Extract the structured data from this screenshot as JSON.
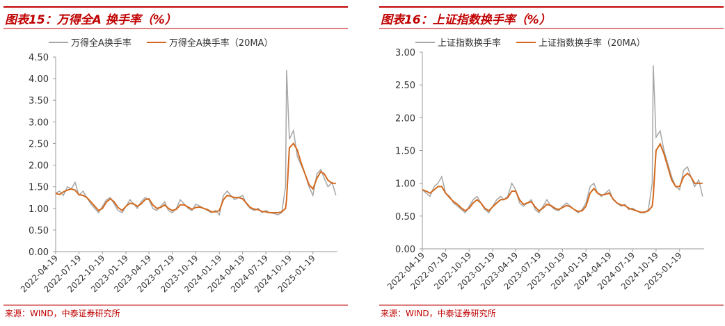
{
  "chart_data": [
    {
      "type": "line",
      "title": "图表15：万得全A 换手率（%）",
      "source": "来源：WIND，中泰证券研究所",
      "legend": "top",
      "grid": false,
      "x": [
        "2022-04-19",
        "2022-05-04",
        "2022-05-19",
        "2022-06-04",
        "2022-06-19",
        "2022-07-04",
        "2022-07-19",
        "2022-08-04",
        "2022-08-19",
        "2022-09-04",
        "2022-09-19",
        "2022-10-04",
        "2022-10-19",
        "2022-11-04",
        "2022-11-19",
        "2022-12-04",
        "2022-12-19",
        "2023-01-04",
        "2023-01-19",
        "2023-02-04",
        "2023-02-19",
        "2023-03-04",
        "2023-03-19",
        "2023-04-04",
        "2023-04-19",
        "2023-05-04",
        "2023-05-19",
        "2023-06-04",
        "2023-06-19",
        "2023-07-04",
        "2023-07-19",
        "2023-08-04",
        "2023-08-19",
        "2023-09-04",
        "2023-09-19",
        "2023-10-04",
        "2023-10-19",
        "2023-11-04",
        "2023-11-19",
        "2023-12-04",
        "2023-12-19",
        "2024-01-04",
        "2024-01-19",
        "2024-02-04",
        "2024-02-19",
        "2024-03-04",
        "2024-03-19",
        "2024-04-04",
        "2024-04-19",
        "2024-05-04",
        "2024-05-19",
        "2024-06-04",
        "2024-06-19",
        "2024-07-04",
        "2024-07-19",
        "2024-08-04",
        "2024-08-19",
        "2024-09-04",
        "2024-09-19",
        "2024-10-04",
        "2024-10-08",
        "2024-10-19",
        "2024-11-04",
        "2024-11-19",
        "2024-12-04",
        "2024-12-19",
        "2025-01-04",
        "2025-01-19",
        "2025-02-04",
        "2025-02-19",
        "2025-03-04",
        "2025-03-19",
        "2025-04-04",
        "2025-04-19"
      ],
      "xlim": [
        "2022-04-19",
        "2025-04-25"
      ],
      "xticks": [
        "2022-04-19",
        "2022-07-19",
        "2022-10-19",
        "2023-01-19",
        "2023-04-19",
        "2023-07-19",
        "2023-10-19",
        "2024-01-19",
        "2024-04-19",
        "2024-07-19",
        "2024-10-19",
        "2025-01-19"
      ],
      "ylim": [
        0,
        4.5
      ],
      "yticks": [
        {
          "value": 0,
          "label": "0.00"
        },
        {
          "value": 0.5,
          "label": "0.50"
        },
        {
          "value": 1,
          "label": "1.00"
        },
        {
          "value": 1.5,
          "label": "1.50"
        },
        {
          "value": 2,
          "label": "2.00"
        },
        {
          "value": 2.5,
          "label": "2.50"
        },
        {
          "value": 3,
          "label": "3.00"
        },
        {
          "value": 3.5,
          "label": "3.50"
        },
        {
          "value": 4,
          "label": "4.00"
        },
        {
          "value": 4.5,
          "label": "4.50"
        }
      ],
      "series": [
        {
          "name": "万得全A换手率",
          "color": "#a6a6a6",
          "values": [
            1.35,
            1.4,
            1.3,
            1.5,
            1.45,
            1.6,
            1.3,
            1.4,
            1.25,
            1.1,
            1.0,
            0.9,
            1.05,
            1.2,
            1.25,
            1.1,
            0.95,
            0.9,
            1.05,
            1.2,
            1.1,
            1.0,
            1.15,
            1.25,
            1.2,
            1.0,
            0.95,
            1.05,
            1.15,
            0.95,
            0.9,
            1.0,
            1.2,
            1.1,
            1.0,
            0.95,
            1.1,
            1.05,
            1.0,
            0.95,
            0.9,
            0.95,
            0.85,
            1.3,
            1.4,
            1.3,
            1.2,
            1.25,
            1.3,
            1.1,
            1.0,
            0.95,
            1.0,
            0.9,
            0.95,
            0.9,
            0.88,
            0.85,
            0.9,
            1.5,
            4.2,
            2.6,
            2.8,
            2.2,
            2.0,
            1.8,
            1.5,
            1.3,
            1.8,
            1.9,
            1.7,
            1.5,
            1.6,
            1.3
          ]
        },
        {
          "name": "万得全A换手率（20MA）",
          "color": "#d2691e",
          "values": [
            1.35,
            1.32,
            1.38,
            1.42,
            1.45,
            1.42,
            1.32,
            1.3,
            1.25,
            1.15,
            1.05,
            0.95,
            1.0,
            1.15,
            1.22,
            1.15,
            1.02,
            0.95,
            1.05,
            1.12,
            1.1,
            1.05,
            1.1,
            1.2,
            1.22,
            1.08,
            1.0,
            1.02,
            1.08,
            1.0,
            0.95,
            0.98,
            1.08,
            1.08,
            1.03,
            0.98,
            1.02,
            1.03,
            1.0,
            0.97,
            0.92,
            0.92,
            0.95,
            1.2,
            1.3,
            1.28,
            1.25,
            1.25,
            1.22,
            1.12,
            1.02,
            0.98,
            0.97,
            0.93,
            0.92,
            0.9,
            0.9,
            0.9,
            0.92,
            1.0,
            1.2,
            2.4,
            2.5,
            2.35,
            2.05,
            1.8,
            1.55,
            1.45,
            1.7,
            1.85,
            1.8,
            1.65,
            1.58,
            1.58
          ]
        }
      ]
    },
    {
      "type": "line",
      "title": "图表16：上证指数换手率（%）",
      "source": "来源：WIND，中泰证券研究所",
      "legend": "top",
      "grid": false,
      "x": [
        "2022-04-19",
        "2022-05-04",
        "2022-05-19",
        "2022-06-04",
        "2022-06-19",
        "2022-07-04",
        "2022-07-19",
        "2022-08-04",
        "2022-08-19",
        "2022-09-04",
        "2022-09-19",
        "2022-10-04",
        "2022-10-19",
        "2022-11-04",
        "2022-11-19",
        "2022-12-04",
        "2022-12-19",
        "2023-01-04",
        "2023-01-19",
        "2023-02-04",
        "2023-02-19",
        "2023-03-04",
        "2023-03-19",
        "2023-04-04",
        "2023-04-19",
        "2023-05-04",
        "2023-05-19",
        "2023-06-04",
        "2023-06-19",
        "2023-07-04",
        "2023-07-19",
        "2023-08-04",
        "2023-08-19",
        "2023-09-04",
        "2023-09-19",
        "2023-10-04",
        "2023-10-19",
        "2023-11-04",
        "2023-11-19",
        "2023-12-04",
        "2023-12-19",
        "2024-01-04",
        "2024-01-19",
        "2024-02-04",
        "2024-02-19",
        "2024-03-04",
        "2024-03-19",
        "2024-04-04",
        "2024-04-19",
        "2024-05-04",
        "2024-05-19",
        "2024-06-04",
        "2024-06-19",
        "2024-07-04",
        "2024-07-19",
        "2024-08-04",
        "2024-08-19",
        "2024-09-04",
        "2024-09-19",
        "2024-10-04",
        "2024-10-08",
        "2024-10-19",
        "2024-11-04",
        "2024-11-19",
        "2024-12-04",
        "2024-12-19",
        "2025-01-04",
        "2025-01-19",
        "2025-02-04",
        "2025-02-19",
        "2025-03-04",
        "2025-03-19",
        "2025-04-04",
        "2025-04-19"
      ],
      "xlim": [
        "2022-04-19",
        "2025-04-25"
      ],
      "xticks": [
        "2022-04-19",
        "2022-07-19",
        "2022-10-19",
        "2023-01-19",
        "2023-04-19",
        "2023-07-19",
        "2023-10-19",
        "2024-01-19",
        "2024-04-19",
        "2024-07-19",
        "2024-10-19",
        "2025-01-19"
      ],
      "ylim": [
        0,
        3
      ],
      "yticks": [
        {
          "value": 0,
          "label": "0.00"
        },
        {
          "value": 0.5,
          "label": "0.50"
        },
        {
          "value": 1,
          "label": "1.00"
        },
        {
          "value": 1.5,
          "label": "1.50"
        },
        {
          "value": 2,
          "label": "2.00"
        },
        {
          "value": 2.5,
          "label": "2.50"
        },
        {
          "value": 3,
          "label": "3.00"
        }
      ],
      "series": [
        {
          "name": "上证指数换手率",
          "color": "#a6a6a6",
          "values": [
            0.9,
            0.85,
            0.8,
            0.95,
            1.0,
            1.1,
            0.85,
            0.8,
            0.7,
            0.65,
            0.6,
            0.55,
            0.65,
            0.75,
            0.8,
            0.7,
            0.6,
            0.55,
            0.65,
            0.75,
            0.8,
            0.75,
            0.8,
            1.0,
            0.9,
            0.7,
            0.65,
            0.7,
            0.75,
            0.6,
            0.55,
            0.65,
            0.75,
            0.65,
            0.6,
            0.58,
            0.65,
            0.7,
            0.65,
            0.6,
            0.55,
            0.6,
            0.7,
            0.95,
            1.0,
            0.85,
            0.8,
            0.85,
            0.9,
            0.75,
            0.7,
            0.65,
            0.68,
            0.6,
            0.62,
            0.58,
            0.55,
            0.55,
            0.6,
            1.0,
            2.8,
            1.7,
            1.8,
            1.5,
            1.3,
            1.1,
            0.95,
            0.9,
            1.2,
            1.25,
            1.1,
            0.95,
            1.05,
            0.8
          ]
        },
        {
          "name": "上证指数换手率（20MA）",
          "color": "#d2691e",
          "values": [
            0.9,
            0.88,
            0.85,
            0.9,
            0.95,
            0.95,
            0.85,
            0.78,
            0.72,
            0.68,
            0.62,
            0.58,
            0.62,
            0.7,
            0.75,
            0.7,
            0.62,
            0.58,
            0.64,
            0.7,
            0.75,
            0.75,
            0.78,
            0.88,
            0.88,
            0.75,
            0.68,
            0.7,
            0.72,
            0.64,
            0.58,
            0.62,
            0.68,
            0.66,
            0.62,
            0.6,
            0.63,
            0.66,
            0.64,
            0.6,
            0.57,
            0.58,
            0.65,
            0.85,
            0.92,
            0.85,
            0.82,
            0.83,
            0.85,
            0.76,
            0.7,
            0.67,
            0.66,
            0.62,
            0.6,
            0.58,
            0.56,
            0.56,
            0.58,
            0.65,
            0.8,
            1.5,
            1.6,
            1.45,
            1.25,
            1.05,
            0.95,
            0.95,
            1.1,
            1.15,
            1.1,
            1.0,
            1.0,
            1.0
          ]
        }
      ]
    }
  ]
}
